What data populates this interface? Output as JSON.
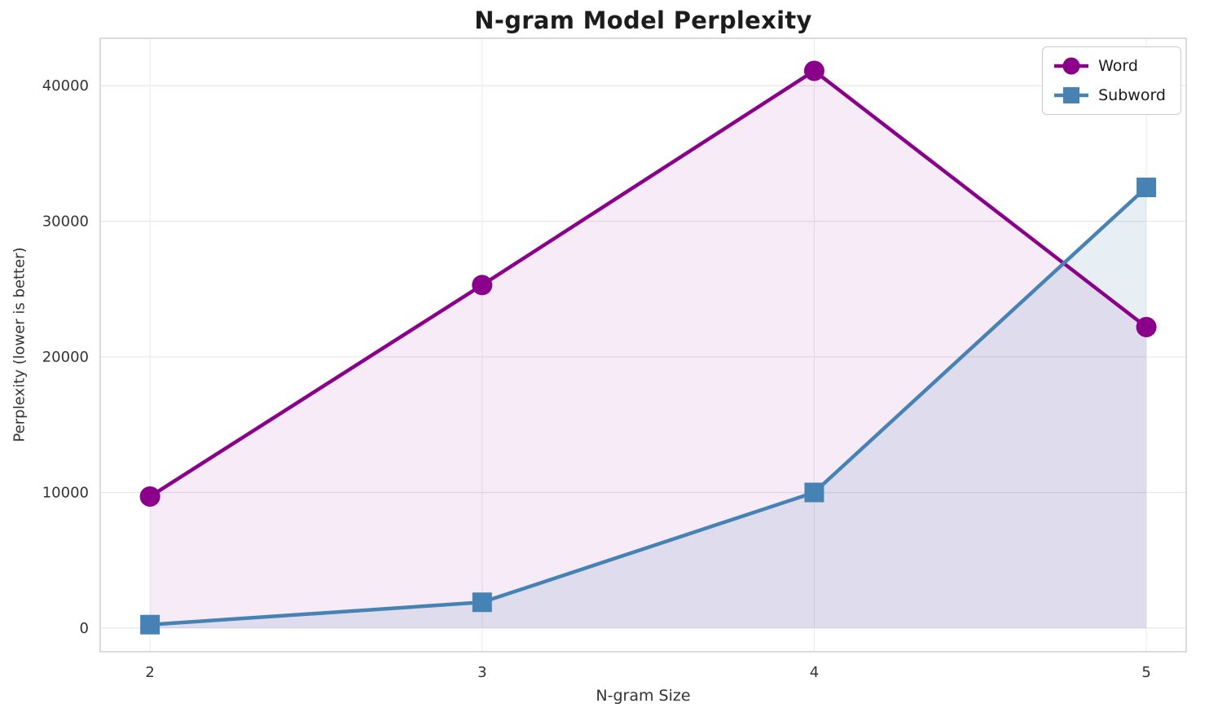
{
  "chart_data": {
    "type": "line",
    "title": "N-gram Model Perplexity",
    "xlabel": "N-gram Size",
    "ylabel": "Perplexity (lower is better)",
    "x": [
      2,
      3,
      4,
      5
    ],
    "series": [
      {
        "name": "Word",
        "marker": "circle",
        "color": "#8B008B",
        "fill_opacity": 0.08,
        "values": [
          9700,
          25300,
          41100,
          22200
        ]
      },
      {
        "name": "Subword",
        "marker": "square",
        "color": "#4682B4",
        "fill_opacity": 0.13,
        "values": [
          250,
          1900,
          10000,
          32500
        ]
      }
    ],
    "xticks": [
      2,
      3,
      4,
      5
    ],
    "yticks": [
      0,
      10000,
      20000,
      30000,
      40000
    ],
    "xlim": [
      1.85,
      5.12
    ],
    "ylim": [
      -1750,
      43500
    ],
    "grid": true,
    "legend_position": "upper right",
    "area_baseline": 0
  }
}
